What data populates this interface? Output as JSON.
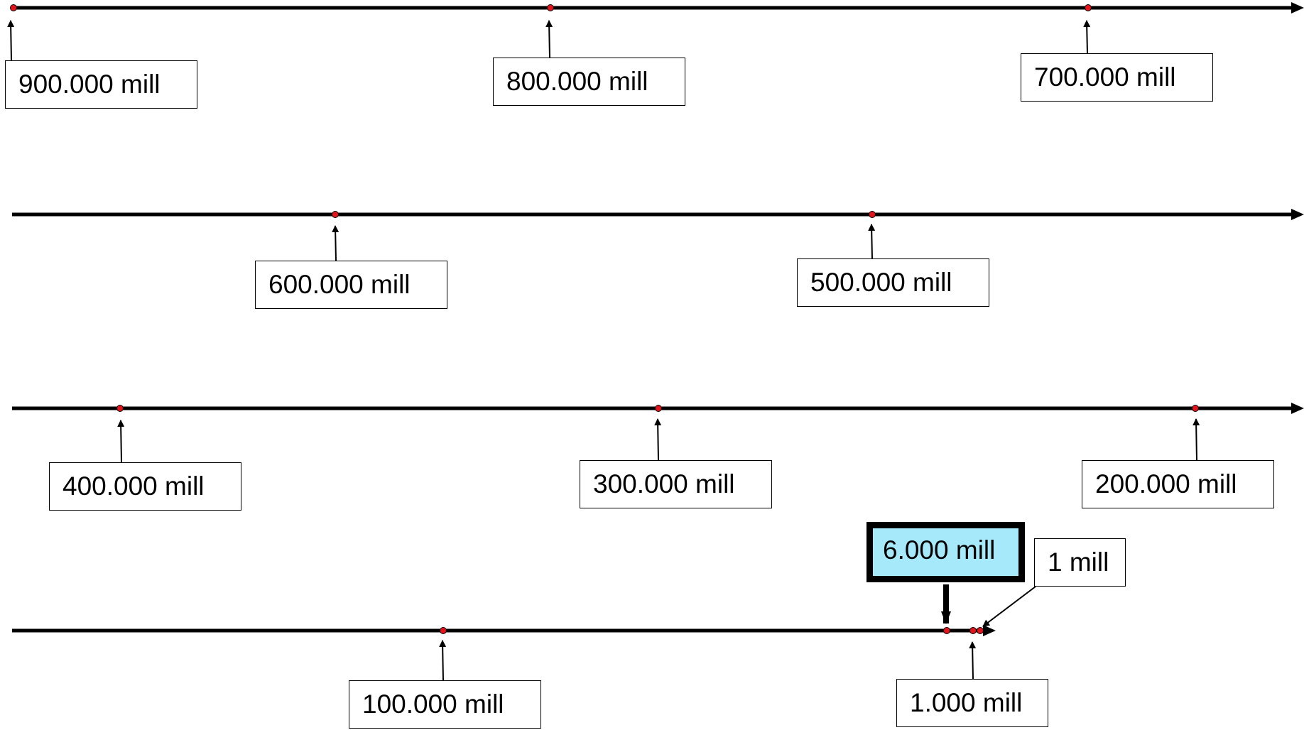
{
  "diagram": {
    "line_color": "#000000",
    "dot_color": "#e3141b",
    "highlight_color": "#a6e9fb",
    "labels": {
      "l900": "900.000 mill",
      "l800": "800.000 mill",
      "l700": "700.000 mill",
      "l600": "600.000 mill",
      "l500": "500.000 mill",
      "l400": "400.000 mill",
      "l300": "300.000 mill",
      "l200": "200.000 mill",
      "l100": "100.000 mill",
      "l6000": "6.000 mill",
      "l1": "1 mill",
      "l1000": "1.000 mill"
    }
  }
}
